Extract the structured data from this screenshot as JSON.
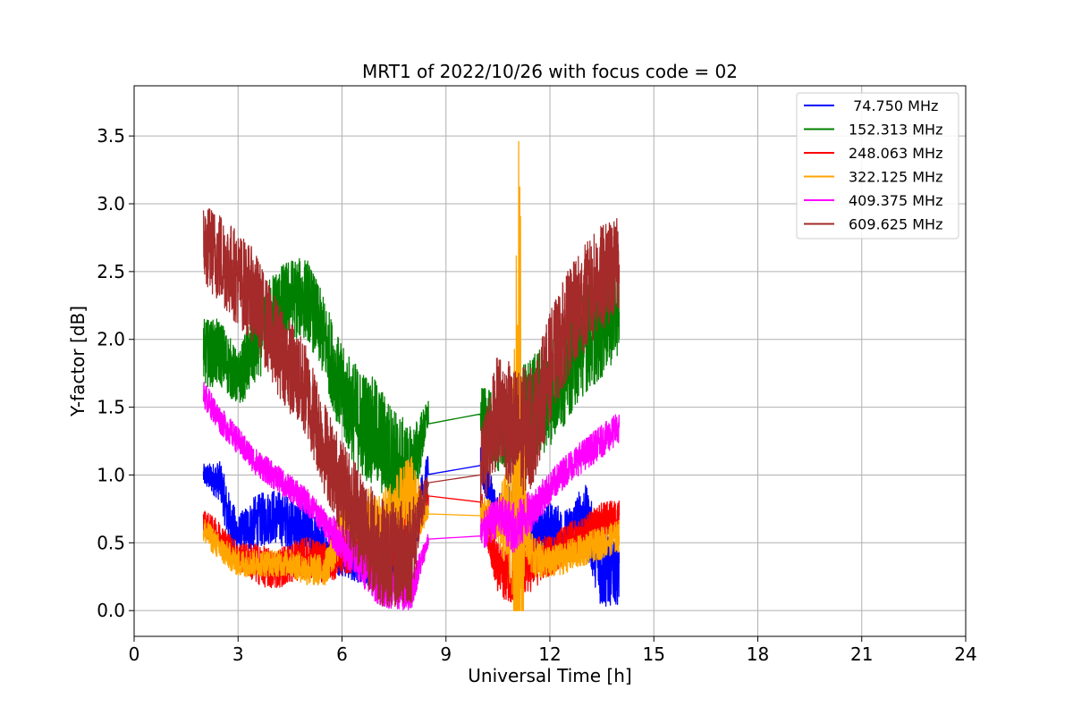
{
  "chart_data": {
    "type": "line",
    "title": "MRT1 of 2022/10/26 with focus code = 02",
    "xlabel": "Universal Time [h]",
    "ylabel": "Y-factor [dB]",
    "xlim": [
      0,
      24
    ],
    "ylim": [
      -0.19,
      3.87
    ],
    "xticks": [
      0,
      3,
      6,
      9,
      12,
      15,
      18,
      21,
      24
    ],
    "xtick_labels": [
      "0",
      "3",
      "6",
      "9",
      "12",
      "15",
      "18",
      "21",
      "24"
    ],
    "yticks": [
      0.0,
      0.5,
      1.0,
      1.5,
      2.0,
      2.5,
      3.0,
      3.5
    ],
    "ytick_labels": [
      "0.0",
      "0.5",
      "1.0",
      "1.5",
      "2.0",
      "2.5",
      "3.0",
      "3.5"
    ],
    "grid": true,
    "legend_position": "top-right",
    "series": [
      {
        "name": "74.750 MHz",
        "color": "#0000ff",
        "x": [
          2.0,
          2.5,
          2.7,
          3.0,
          3.5,
          4.0,
          4.5,
          5.0,
          5.5,
          6.0,
          6.5,
          7.0,
          7.5,
          8.0,
          8.5,
          10.0,
          10.5,
          11.0,
          11.5,
          12.0,
          12.5,
          13.0,
          13.5,
          14.0
        ],
        "y": [
          1.0,
          0.95,
          0.7,
          0.55,
          0.65,
          0.7,
          0.65,
          0.6,
          0.45,
          0.4,
          0.35,
          0.3,
          0.4,
          0.5,
          1.08,
          1.07,
          0.7,
          0.8,
          0.55,
          0.6,
          0.55,
          0.7,
          0.3,
          0.35
        ],
        "amp": [
          0.08,
          0.15,
          0.2,
          0.15,
          0.2,
          0.2,
          0.2,
          0.2,
          0.15,
          0.15,
          0.15,
          0.15,
          0.2,
          0.25,
          0.1,
          0.15,
          0.15,
          0.2,
          0.2,
          0.2,
          0.2,
          0.25,
          0.3,
          0.3
        ]
      },
      {
        "name": "152.313 MHz",
        "color": "#008000",
        "x": [
          2.0,
          2.5,
          3.0,
          3.5,
          4.0,
          4.5,
          5.0,
          5.5,
          6.0,
          6.5,
          7.0,
          7.5,
          8.0,
          8.5,
          10.0,
          10.5,
          11.0,
          11.5,
          12.0,
          12.5,
          13.0,
          13.5,
          14.0
        ],
        "y": [
          1.9,
          1.9,
          1.7,
          1.95,
          2.2,
          2.3,
          2.3,
          2.0,
          1.6,
          1.4,
          1.3,
          1.1,
          1.0,
          1.46,
          1.45,
          1.3,
          1.4,
          1.5,
          1.6,
          1.8,
          2.0,
          2.1,
          2.2
        ],
        "amp": [
          0.25,
          0.25,
          0.2,
          0.3,
          0.3,
          0.3,
          0.3,
          0.3,
          0.35,
          0.4,
          0.4,
          0.4,
          0.35,
          0.1,
          0.2,
          0.3,
          0.35,
          0.4,
          0.4,
          0.4,
          0.4,
          0.4,
          0.3
        ]
      },
      {
        "name": "248.063 MHz",
        "color": "#ff0000",
        "x": [
          2.0,
          2.5,
          3.0,
          3.5,
          4.0,
          4.5,
          5.0,
          5.5,
          6.0,
          6.5,
          7.0,
          7.5,
          8.0,
          8.5,
          10.0,
          10.5,
          11.0,
          11.5,
          12.0,
          12.5,
          13.0,
          13.5,
          14.0
        ],
        "y": [
          0.65,
          0.55,
          0.4,
          0.35,
          0.3,
          0.35,
          0.4,
          0.35,
          0.45,
          0.5,
          0.45,
          0.5,
          0.6,
          0.81,
          0.8,
          0.3,
          0.25,
          0.35,
          0.4,
          0.5,
          0.55,
          0.65,
          0.7
        ],
        "amp": [
          0.1,
          0.1,
          0.1,
          0.15,
          0.15,
          0.15,
          0.15,
          0.15,
          0.2,
          0.2,
          0.2,
          0.2,
          0.25,
          0.05,
          0.1,
          0.2,
          0.2,
          0.2,
          0.15,
          0.15,
          0.15,
          0.15,
          0.12
        ]
      },
      {
        "name": "322.125 MHz",
        "color": "#ffa500",
        "x": [
          2.0,
          2.5,
          3.0,
          3.5,
          4.0,
          4.5,
          5.0,
          5.5,
          6.0,
          6.5,
          7.0,
          7.5,
          8.0,
          8.5,
          10.0,
          10.5,
          10.9,
          11.1,
          11.3,
          11.5,
          12.0,
          12.5,
          13.0,
          13.5,
          14.0
        ],
        "y": [
          0.6,
          0.45,
          0.35,
          0.35,
          0.35,
          0.35,
          0.3,
          0.3,
          0.6,
          0.7,
          0.6,
          0.7,
          0.8,
          0.71,
          0.7,
          0.65,
          0.7,
          1.3,
          0.7,
          0.4,
          0.35,
          0.4,
          0.45,
          0.5,
          0.55
        ],
        "amp": [
          0.1,
          0.1,
          0.1,
          0.1,
          0.1,
          0.1,
          0.12,
          0.12,
          0.2,
          0.25,
          0.25,
          0.3,
          0.35,
          0.05,
          0.15,
          0.15,
          0.6,
          2.3,
          0.3,
          0.15,
          0.12,
          0.12,
          0.12,
          0.12,
          0.12
        ]
      },
      {
        "name": "409.375 MHz",
        "color": "#ff00ff",
        "x": [
          2.0,
          2.5,
          3.0,
          3.5,
          4.0,
          4.5,
          5.0,
          5.5,
          6.0,
          6.5,
          7.0,
          7.5,
          8.0,
          8.5,
          10.0,
          10.5,
          11.0,
          11.5,
          12.0,
          12.5,
          13.0,
          13.5,
          14.0
        ],
        "y": [
          1.6,
          1.4,
          1.25,
          1.1,
          1.0,
          0.9,
          0.8,
          0.65,
          0.5,
          0.35,
          0.2,
          0.15,
          0.15,
          0.53,
          0.55,
          0.7,
          0.6,
          0.75,
          0.9,
          1.05,
          1.15,
          1.25,
          1.35
        ],
        "amp": [
          0.1,
          0.1,
          0.1,
          0.1,
          0.1,
          0.1,
          0.1,
          0.1,
          0.15,
          0.15,
          0.15,
          0.15,
          0.15,
          0.05,
          0.15,
          0.15,
          0.2,
          0.15,
          0.12,
          0.12,
          0.12,
          0.12,
          0.12
        ]
      },
      {
        "name": "609.625 MHz",
        "color": "#a52a2a",
        "x": [
          2.0,
          2.5,
          3.0,
          3.5,
          4.0,
          4.5,
          5.0,
          5.5,
          6.0,
          6.5,
          7.0,
          7.5,
          8.0,
          8.5,
          10.0,
          10.5,
          11.0,
          11.5,
          12.0,
          12.5,
          13.0,
          13.5,
          14.0
        ],
        "y": [
          2.7,
          2.6,
          2.45,
          2.3,
          2.0,
          1.8,
          1.6,
          1.2,
          0.9,
          0.7,
          0.45,
          0.4,
          0.45,
          0.95,
          1.0,
          1.5,
          1.3,
          1.35,
          1.8,
          2.1,
          2.3,
          2.45,
          2.55
        ],
        "amp": [
          0.3,
          0.35,
          0.35,
          0.35,
          0.35,
          0.35,
          0.35,
          0.35,
          0.35,
          0.4,
          0.4,
          0.4,
          0.4,
          0.05,
          0.35,
          0.4,
          0.5,
          0.45,
          0.4,
          0.4,
          0.4,
          0.4,
          0.35
        ]
      }
    ]
  }
}
